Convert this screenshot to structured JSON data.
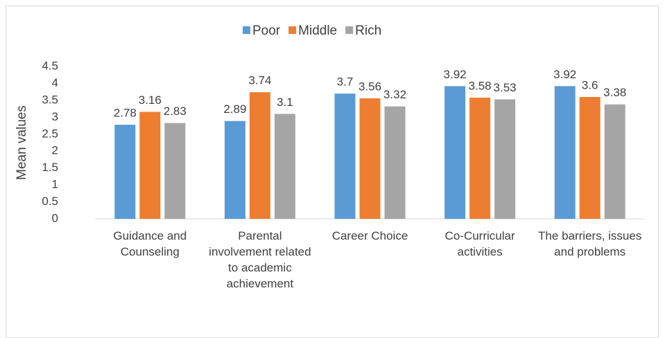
{
  "chart_data": {
    "type": "bar",
    "y_label": "Mean values",
    "categories": [
      "Guidance and Counseling",
      "Parental involvement related to academic achievement",
      "Career Choice",
      "Co-Curricular activities",
      "The barriers, issues and problems"
    ],
    "series": [
      {
        "name": "Poor",
        "color": "#5b9bd5",
        "values": [
          2.78,
          2.89,
          3.7,
          3.92,
          3.92
        ]
      },
      {
        "name": "Middle",
        "color": "#ed7d31",
        "values": [
          3.16,
          3.74,
          3.56,
          3.58,
          3.6
        ]
      },
      {
        "name": "Rich",
        "color": "#a5a5a5",
        "values": [
          2.83,
          3.1,
          3.32,
          3.53,
          3.38
        ]
      }
    ],
    "ylim": [
      0,
      4.5
    ],
    "yticks": [
      0,
      0.5,
      1,
      1.5,
      2,
      2.5,
      3,
      3.5,
      4,
      4.5
    ],
    "grid": false,
    "legend": "top"
  }
}
